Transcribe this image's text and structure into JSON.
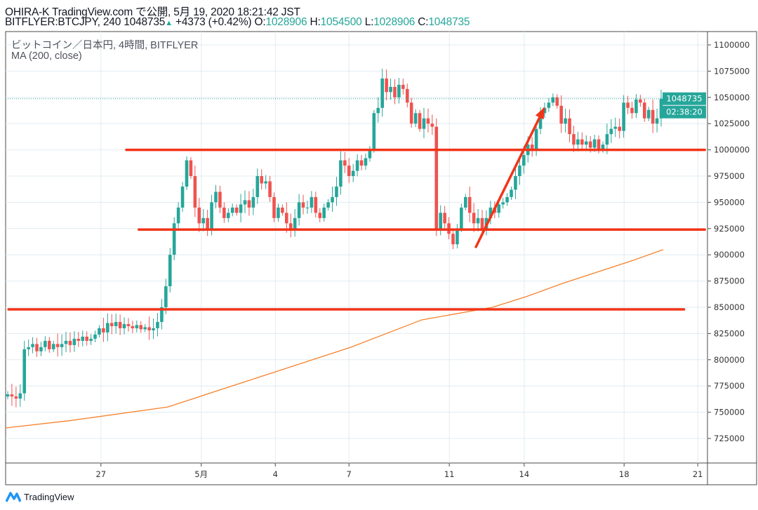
{
  "header": {
    "line1": "OHIRA-K TradingView.com で公開, 5月 19, 2020 18:21:42 JST",
    "symbol": "BITFLYER:BTCJPY, 240",
    "last": "1048735",
    "change": "+4373 (+0.42%)",
    "o_label": "O:",
    "o": "1028906",
    "h_label": "H:",
    "h": "1054500",
    "l_label": "L:",
    "l": "1028906",
    "c_label": "C:",
    "c": "1048735"
  },
  "legend": {
    "title": "ビットコイン／日本円, 4時間, BITFLYER",
    "indicator": "MA (200, close)"
  },
  "badges": {
    "price": "1048735",
    "countdown": "02:38:20"
  },
  "branding": {
    "logo_text": "TradingView"
  },
  "colors": {
    "up": "#26a69a",
    "down": "#ef5350",
    "ma": "#f7802a",
    "drawing": "#f23418",
    "grid": "#e1ecf2"
  },
  "chart_data": {
    "type": "candlestick",
    "title": "ビットコイン／日本円, 4時間, BITFLYER",
    "interval": "4h",
    "ylim": [
      710000,
      1110000
    ],
    "y_ticks": [
      1100000,
      1075000,
      1050000,
      1025000,
      1000000,
      975000,
      950000,
      925000,
      900000,
      875000,
      850000,
      825000,
      800000,
      775000,
      750000,
      725000
    ],
    "x_ticks": [
      {
        "label": "27",
        "index": 22.9
      },
      {
        "label": "5月",
        "index": 47.0
      },
      {
        "label": "4",
        "index": 64.8
      },
      {
        "label": "7",
        "index": 82.5
      },
      {
        "label": "11",
        "index": 106.6
      },
      {
        "label": "14",
        "index": 124.6
      },
      {
        "label": "18",
        "index": 148.6
      },
      {
        "label": "21",
        "index": 166.3
      }
    ],
    "closes_thousands": [
      767,
      765,
      763,
      768,
      810,
      812,
      815,
      808,
      812,
      818,
      810,
      815,
      812,
      815,
      818,
      814,
      820,
      818,
      822,
      818,
      820,
      824,
      830,
      826,
      835,
      832,
      836,
      830,
      834,
      832,
      830,
      833,
      829,
      831,
      828,
      830,
      836,
      850,
      870,
      900,
      930,
      945,
      965,
      990,
      975,
      945,
      930,
      935,
      925,
      950,
      960,
      945,
      935,
      940,
      945,
      940,
      948,
      952,
      945,
      955,
      975,
      968,
      970,
      955,
      935,
      945,
      940,
      930,
      925,
      935,
      950,
      945,
      945,
      955,
      940,
      935,
      945,
      950,
      955,
      965,
      990,
      985,
      975,
      980,
      990,
      985,
      992,
      1000,
      1035,
      1040,
      1068,
      1055,
      1060,
      1050,
      1062,
      1058,
      1045,
      1025,
      1035,
      1020,
      1030,
      1025,
      1022,
      925,
      940,
      930,
      920,
      910,
      925,
      945,
      955,
      940,
      930,
      935,
      925,
      935,
      945,
      940,
      948,
      950,
      955,
      962,
      975,
      985,
      995,
      1005,
      1000,
      1020,
      1035,
      1040,
      1045,
      1050,
      1042,
      1025,
      1030,
      1015,
      1005,
      1010,
      1005,
      1008,
      1002,
      1010,
      1000,
      1005,
      1015,
      1020,
      1022,
      1018,
      1045,
      1040,
      1035,
      1048,
      1045,
      1030,
      1038,
      1025,
      1030,
      1048.735
    ],
    "ma200": {
      "name": "MA (200, close)",
      "points": [
        [
          0,
          735000
        ],
        [
          15.5,
          742000
        ],
        [
          39,
          755000
        ],
        [
          49,
          768000
        ],
        [
          66,
          790000
        ],
        [
          83,
          812000
        ],
        [
          100,
          838000
        ],
        [
          117,
          850000
        ],
        [
          125,
          860000
        ],
        [
          134,
          873000
        ],
        [
          151,
          895000
        ],
        [
          158,
          905000
        ]
      ]
    },
    "drawings": {
      "lines": [
        {
          "price": 1000000,
          "from": 29,
          "to": 168
        },
        {
          "price": 924000,
          "from": 32,
          "to": 168
        },
        {
          "price": 848000,
          "from": 0.7,
          "to": 163
        }
      ],
      "arrow": {
        "from": [
          113,
          907500
        ],
        "to": [
          129.3,
          1039000
        ]
      }
    },
    "last_price": 1048735
  }
}
